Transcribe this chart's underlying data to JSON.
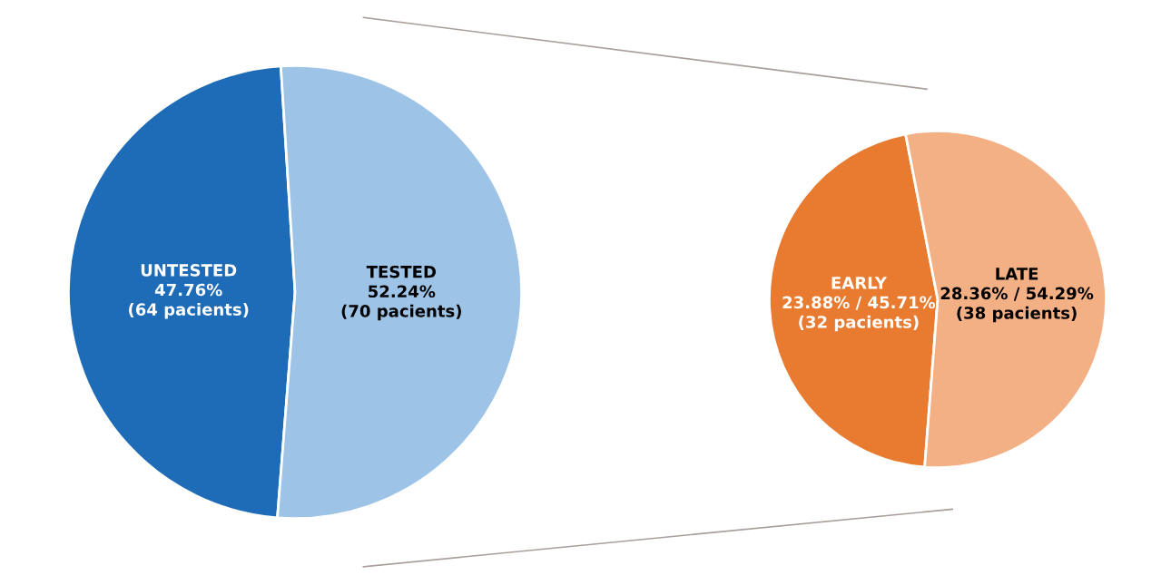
{
  "chart_data": [
    {
      "type": "pie",
      "categories": [
        "UNTESTED",
        "TESTED"
      ],
      "values": [
        47.76,
        52.24
      ],
      "colors": [
        "#1e6bb8",
        "#9dc3e6"
      ],
      "value_labels": [
        "47.76%\n(64 pacients)",
        "52.24%\n(70 pacients)"
      ]
    },
    {
      "type": "pie",
      "categories": [
        "EARLY",
        "LATE"
      ],
      "values": [
        45.71,
        54.29
      ],
      "colors": [
        "#e97b30",
        "#f3b084"
      ],
      "value_labels": [
        "23.88% / 45.71%\n(32 pacients)",
        "28.36% / 54.29%\n(38 pacients)"
      ]
    }
  ]
}
